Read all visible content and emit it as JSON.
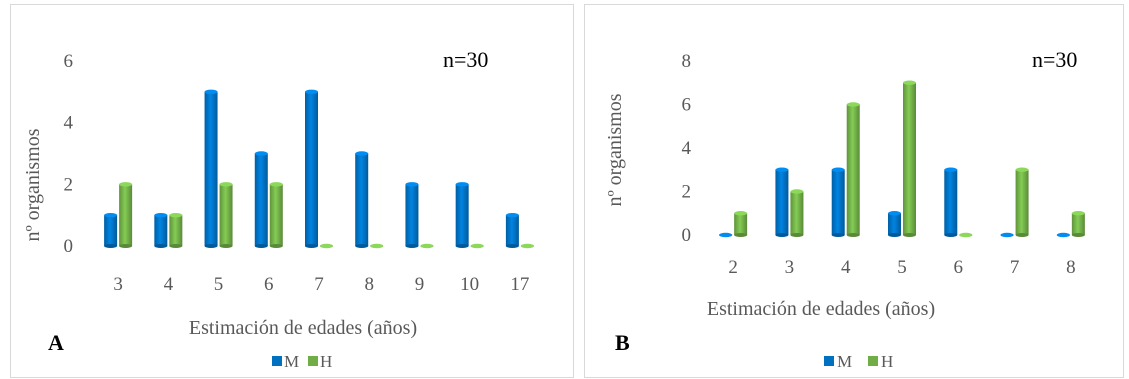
{
  "chart_data": [
    {
      "type": "bar",
      "panel_label": "A",
      "annotation": "n=30",
      "xlabel": "Estimación de edades (años)",
      "ylabel": "nº organismos",
      "categories": [
        "3",
        "4",
        "5",
        "6",
        "7",
        "8",
        "9",
        "10",
        "17"
      ],
      "series": [
        {
          "name": "M",
          "color": "#0070c0",
          "values": [
            1,
            1,
            5,
            3,
            5,
            3,
            2,
            2,
            1
          ]
        },
        {
          "name": "H",
          "color": "#70ad47",
          "values": [
            2,
            1,
            2,
            2,
            0,
            0,
            0,
            0,
            0
          ]
        }
      ],
      "ylim": [
        0,
        6
      ],
      "yticks": [
        "0",
        "2",
        "4",
        "6"
      ],
      "legend": "bottom"
    },
    {
      "type": "bar",
      "panel_label": "B",
      "annotation": "n=30",
      "xlabel": "Estimación de edades (años)",
      "ylabel": "nº organismos",
      "categories": [
        "2",
        "3",
        "4",
        "5",
        "6",
        "7",
        "8"
      ],
      "series": [
        {
          "name": "M",
          "color": "#0070c0",
          "values": [
            0,
            3,
            3,
            1,
            3,
            0,
            0
          ]
        },
        {
          "name": "H",
          "color": "#70ad47",
          "values": [
            1,
            2,
            6,
            7,
            0,
            3,
            1
          ]
        }
      ],
      "ylim": [
        0,
        8
      ],
      "yticks": [
        "0",
        "2",
        "4",
        "6",
        "8"
      ],
      "legend": "bottom"
    }
  ]
}
